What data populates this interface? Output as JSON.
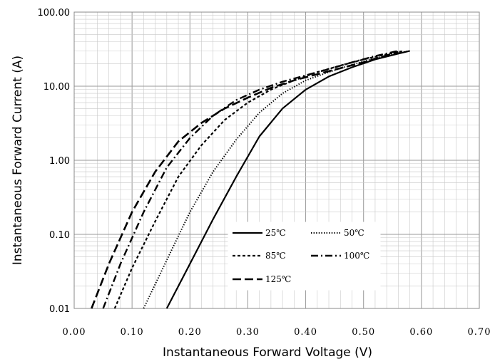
{
  "chart_data": {
    "type": "line",
    "title": "",
    "xlabel": "Instantaneous Forward Voltage (V)",
    "ylabel": "Instantaneous Forward Current (A)",
    "xlim": [
      0.0,
      0.7
    ],
    "ylim": [
      0.01,
      100
    ],
    "y_scale": "log",
    "grid": true,
    "legend_position": "bottom-center",
    "x_ticks": [
      "0.00",
      "0.10",
      "0.20",
      "0.30",
      "0.40",
      "0.50",
      "0.60",
      "0.70"
    ],
    "y_ticks": [
      "0.01",
      "0.10",
      "1.00",
      "10.00",
      "100.00"
    ],
    "series": [
      {
        "name": "25℃",
        "dash": "solid",
        "x": [
          0.16,
          0.2,
          0.24,
          0.28,
          0.32,
          0.36,
          0.4,
          0.44,
          0.48,
          0.52,
          0.56,
          0.58
        ],
        "y": [
          0.01,
          0.04,
          0.16,
          0.6,
          2.1,
          5.0,
          9.0,
          13.5,
          18.0,
          23.0,
          27.5,
          30.0
        ]
      },
      {
        "name": "50℃",
        "dash": "dotted",
        "x": [
          0.12,
          0.16,
          0.2,
          0.24,
          0.28,
          0.32,
          0.36,
          0.4,
          0.44,
          0.48,
          0.52,
          0.56,
          0.575
        ],
        "y": [
          0.01,
          0.045,
          0.2,
          0.7,
          1.9,
          4.4,
          8.0,
          12.0,
          15.5,
          19.5,
          24.0,
          28.0,
          29.5
        ]
      },
      {
        "name": "85℃",
        "dash": "short-dash",
        "x": [
          0.07,
          0.1,
          0.14,
          0.18,
          0.22,
          0.26,
          0.3,
          0.34,
          0.38,
          0.42,
          0.46,
          0.5,
          0.54,
          0.57
        ],
        "y": [
          0.01,
          0.035,
          0.15,
          0.6,
          1.6,
          3.5,
          6.0,
          9.0,
          12.0,
          15.5,
          19.0,
          23.0,
          27.0,
          30.0
        ]
      },
      {
        "name": "100℃",
        "dash": "dash-dot",
        "x": [
          0.05,
          0.08,
          0.12,
          0.16,
          0.2,
          0.24,
          0.28,
          0.32,
          0.36,
          0.4,
          0.44,
          0.48,
          0.52,
          0.56
        ],
        "y": [
          0.01,
          0.04,
          0.2,
          0.8,
          2.0,
          4.0,
          6.5,
          9.0,
          11.5,
          14.0,
          17.0,
          21.0,
          25.5,
          30.0
        ]
      },
      {
        "name": "125℃",
        "dash": "long-dash",
        "x": [
          0.03,
          0.06,
          0.1,
          0.14,
          0.18,
          0.22,
          0.26,
          0.3,
          0.34,
          0.38,
          0.42,
          0.46,
          0.5,
          0.54,
          0.56
        ],
        "y": [
          0.01,
          0.04,
          0.2,
          0.7,
          1.8,
          3.2,
          5.0,
          7.0,
          9.5,
          12.0,
          14.5,
          17.5,
          21.0,
          26.0,
          29.0
        ]
      }
    ]
  }
}
